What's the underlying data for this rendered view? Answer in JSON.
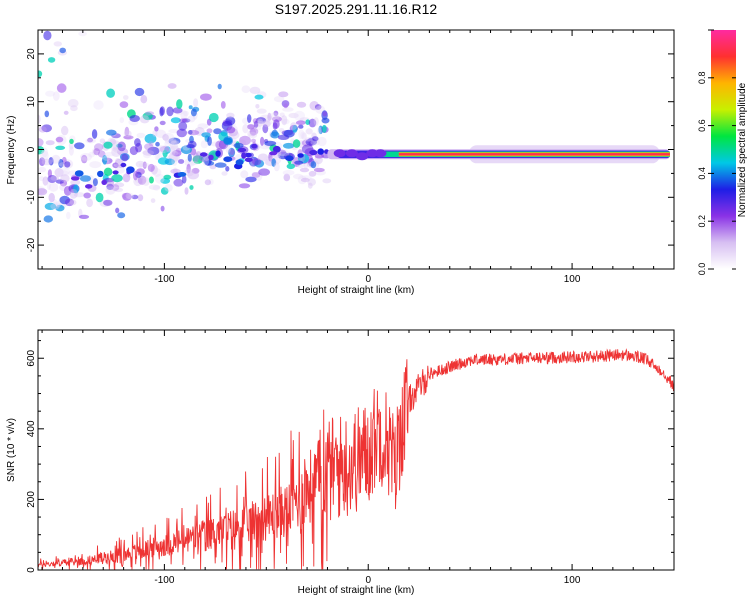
{
  "title": "S197.2025.291.11.16.R12",
  "chart_data": [
    {
      "type": "heatmap",
      "name": "spectrogram",
      "xlabel": "Height of straight line (km)",
      "ylabel": "Frequency (Hz)",
      "xlim": [
        -162,
        150
      ],
      "ylim": [
        -25,
        25
      ],
      "xticks": [
        -100,
        0,
        100
      ],
      "yticks": [
        -20,
        -10,
        0,
        10,
        20
      ],
      "grid": false,
      "colorbar": {
        "label": "Normalized spectral amplitude",
        "range": [
          0.0,
          1.0
        ],
        "ticks": [
          0.0,
          0.2,
          0.4,
          0.6,
          0.8
        ],
        "colormap": [
          "#ffffff",
          "#d7bff2",
          "#8a32e6",
          "#1e1ee6",
          "#00c8e6",
          "#00e640",
          "#c8f000",
          "#ffb400",
          "#ff3030",
          "#ff2aa0"
        ]
      },
      "features": [
        {
          "label": "diffuse scatter",
          "x_range": [
            -162,
            -20
          ],
          "freq_center": [
            -5,
            5
          ],
          "freq_spread_hz": 8,
          "amplitude": 0.25
        },
        {
          "label": "steady tone",
          "x_range": [
            15,
            148
          ],
          "freq_hz": -1,
          "amplitude": 0.95
        }
      ]
    },
    {
      "type": "line",
      "name": "snr",
      "xlabel": "Height of straight line (km)",
      "ylabel": "SNR (10 * v/v)",
      "xlim": [
        -162,
        150
      ],
      "ylim": [
        0,
        680
      ],
      "xticks": [
        -100,
        0,
        100
      ],
      "yticks": [
        0,
        200,
        400,
        600
      ],
      "grid": false,
      "color": "#ee3333",
      "series": [
        {
          "name": "SNR",
          "x": [
            -162,
            -140,
            -120,
            -100,
            -80,
            -60,
            -40,
            -30,
            -20,
            -10,
            0,
            5,
            10,
            13,
            16,
            20,
            30,
            50,
            80,
            110,
            125,
            135,
            145,
            150
          ],
          "values": [
            15,
            25,
            45,
            70,
            100,
            130,
            170,
            230,
            280,
            300,
            330,
            400,
            360,
            280,
            400,
            480,
            555,
            595,
            600,
            605,
            610,
            600,
            560,
            520
          ]
        }
      ]
    }
  ]
}
